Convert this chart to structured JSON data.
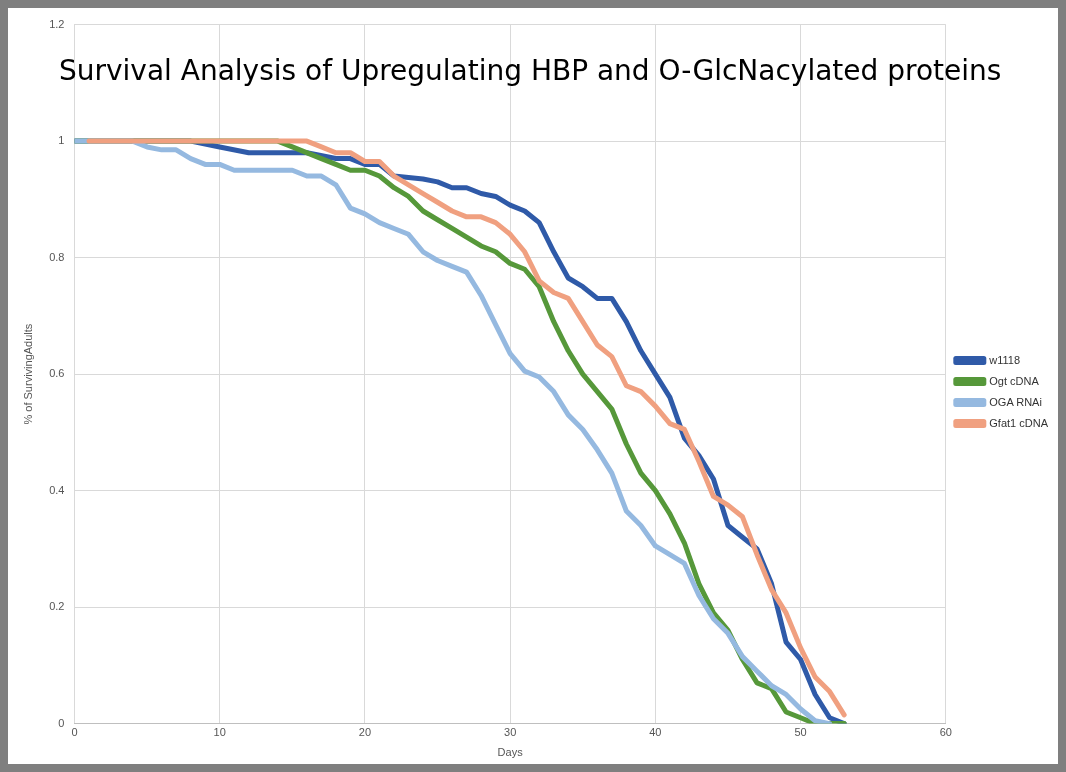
{
  "chart_data": {
    "type": "line",
    "title": "Survival Analysis of Upregulating HBP and O-GlcNacylated proteins",
    "xlabel": "Days",
    "ylabel": "% of SurvivingAdults",
    "xlim": [
      0,
      60
    ],
    "xticks": [
      0,
      10,
      20,
      30,
      40,
      50,
      60
    ],
    "ylim": [
      0,
      1.2
    ],
    "yticks": [
      0,
      0.2,
      0.4,
      0.6,
      0.8,
      1,
      1.2
    ],
    "grid": true,
    "legend": "right",
    "marker": "none",
    "line_style": "solid",
    "series": [
      {
        "name": "w1118",
        "color": "#2f5aa8",
        "x": [
          0,
          8,
          10,
          12,
          16,
          18,
          19,
          20,
          21,
          22,
          24,
          25,
          26,
          27,
          28,
          29,
          30,
          31,
          32,
          33,
          34,
          35,
          36,
          37,
          38,
          39,
          40,
          41,
          42,
          43,
          44,
          45,
          46,
          47,
          48,
          49,
          50,
          51,
          52,
          53
        ],
        "values": [
          1,
          1,
          0.99,
          0.98,
          0.98,
          0.97,
          0.97,
          0.96,
          0.96,
          0.94,
          0.935,
          0.93,
          0.92,
          0.92,
          0.91,
          0.905,
          0.89,
          0.88,
          0.86,
          0.81,
          0.765,
          0.75,
          0.73,
          0.73,
          0.69,
          0.64,
          0.6,
          0.56,
          0.49,
          0.46,
          0.42,
          0.34,
          0.32,
          0.3,
          0.24,
          0.14,
          0.11,
          0.05,
          0.01,
          0
        ]
      },
      {
        "name": "Ogt cDNA",
        "color": "#56983a",
        "x": [
          0,
          14,
          15,
          17,
          18,
          19,
          20,
          21,
          22,
          23,
          24,
          25,
          26,
          27,
          28,
          29,
          30,
          31,
          32,
          33,
          34,
          35,
          36,
          37,
          38,
          39,
          40,
          41,
          42,
          43,
          44,
          45,
          46,
          47,
          48,
          49,
          50,
          51,
          52,
          53
        ],
        "values": [
          1,
          1,
          0.99,
          0.97,
          0.96,
          0.95,
          0.95,
          0.94,
          0.92,
          0.905,
          0.88,
          0.865,
          0.85,
          0.835,
          0.82,
          0.81,
          0.79,
          0.78,
          0.75,
          0.69,
          0.64,
          0.6,
          0.57,
          0.54,
          0.48,
          0.43,
          0.4,
          0.36,
          0.31,
          0.24,
          0.19,
          0.16,
          0.11,
          0.07,
          0.06,
          0.02,
          0.01,
          0,
          0,
          0
        ]
      },
      {
        "name": "OGA RNAi",
        "color": "#95b9e0",
        "x": [
          0,
          4,
          5,
          6,
          7,
          8,
          9,
          10,
          11,
          15,
          16,
          17,
          18,
          19,
          20,
          21,
          22,
          23,
          24,
          25,
          26,
          27,
          28,
          29,
          30,
          31,
          32,
          33,
          34,
          35,
          36,
          37,
          38,
          39,
          40,
          41,
          42,
          43,
          44,
          45,
          46,
          47,
          48,
          49,
          50,
          51,
          52
        ],
        "values": [
          1,
          1,
          0.99,
          0.985,
          0.985,
          0.97,
          0.96,
          0.96,
          0.95,
          0.95,
          0.94,
          0.94,
          0.925,
          0.885,
          0.875,
          0.86,
          0.85,
          0.84,
          0.81,
          0.795,
          0.785,
          0.775,
          0.735,
          0.685,
          0.635,
          0.605,
          0.595,
          0.57,
          0.53,
          0.505,
          0.47,
          0.43,
          0.365,
          0.34,
          0.305,
          0.29,
          0.275,
          0.22,
          0.18,
          0.155,
          0.115,
          0.09,
          0.065,
          0.05,
          0.025,
          0.005,
          0
        ]
      },
      {
        "name": "Gfat1 cDNA",
        "color": "#f0a080",
        "x": [
          1,
          16,
          17,
          18,
          19,
          20,
          21,
          22,
          23,
          24,
          25,
          26,
          27,
          28,
          29,
          30,
          31,
          32,
          33,
          34,
          35,
          36,
          37,
          38,
          39,
          40,
          41,
          42,
          43,
          44,
          45,
          46,
          47,
          48,
          49,
          50,
          51,
          52,
          53
        ],
        "values": [
          1,
          1,
          0.99,
          0.98,
          0.98,
          0.965,
          0.965,
          0.94,
          0.925,
          0.91,
          0.895,
          0.88,
          0.87,
          0.87,
          0.86,
          0.84,
          0.81,
          0.76,
          0.74,
          0.73,
          0.69,
          0.65,
          0.63,
          0.58,
          0.57,
          0.545,
          0.515,
          0.505,
          0.45,
          0.39,
          0.375,
          0.355,
          0.29,
          0.23,
          0.19,
          0.13,
          0.08,
          0.055,
          0.015
        ]
      }
    ]
  }
}
